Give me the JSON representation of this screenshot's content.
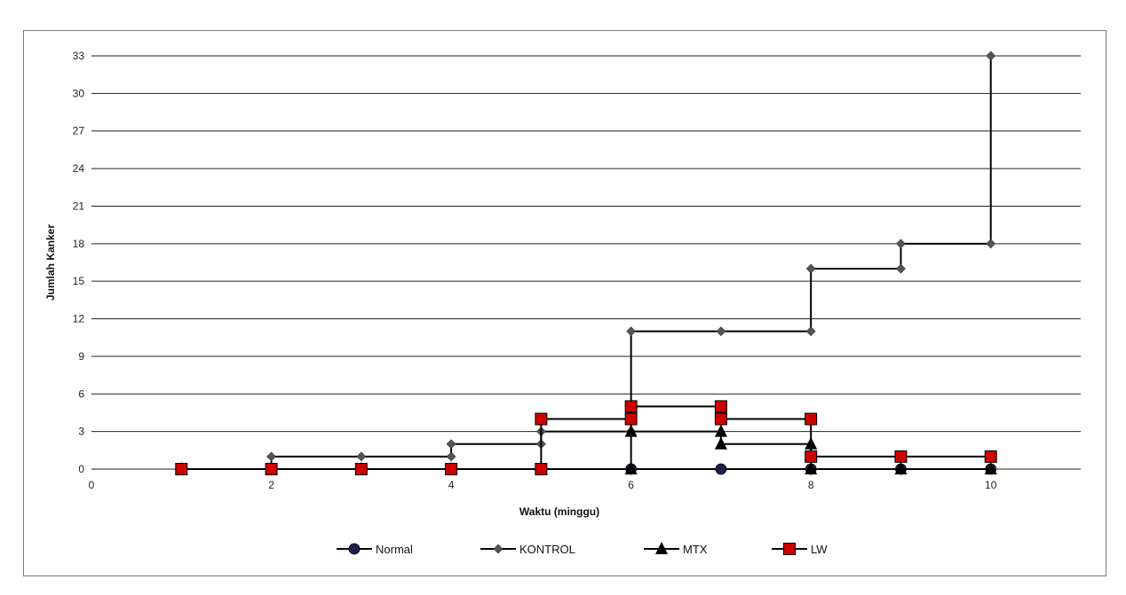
{
  "chart_data": {
    "type": "line",
    "title": "",
    "xlabel": "Waktu (minggu)",
    "ylabel": "Jumlah Kanker",
    "xlim": [
      0,
      11
    ],
    "ylim": [
      0,
      33
    ],
    "x_ticks": [
      0,
      2,
      4,
      6,
      8,
      10
    ],
    "y_ticks": [
      0,
      3,
      6,
      9,
      12,
      15,
      18,
      21,
      24,
      27,
      30,
      33
    ],
    "grid": "horizontal",
    "legend_position": "bottom",
    "series": [
      {
        "name": "Normal",
        "marker": "circle",
        "color": "#1b1f4a",
        "points": [
          [
            1,
            0
          ],
          [
            2,
            0
          ],
          [
            3,
            0
          ],
          [
            4,
            0
          ],
          [
            5,
            0
          ],
          [
            6,
            0
          ],
          [
            7,
            0
          ],
          [
            8,
            0
          ],
          [
            9,
            0
          ],
          [
            10,
            0
          ]
        ]
      },
      {
        "name": "KONTROL",
        "marker": "diamond",
        "color": "#555555",
        "points": [
          [
            1,
            0
          ],
          [
            2,
            0
          ],
          [
            2,
            1
          ],
          [
            3,
            1
          ],
          [
            4,
            1
          ],
          [
            4,
            2
          ],
          [
            5,
            2
          ],
          [
            5,
            3
          ],
          [
            6,
            3
          ],
          [
            6,
            11
          ],
          [
            7,
            11
          ],
          [
            8,
            11
          ],
          [
            8,
            16
          ],
          [
            9,
            16
          ],
          [
            9,
            18
          ],
          [
            10,
            18
          ],
          [
            10,
            33
          ]
        ]
      },
      {
        "name": "MTX",
        "marker": "triangle",
        "color": "#000000",
        "points": [
          [
            1,
            0
          ],
          [
            2,
            0
          ],
          [
            3,
            0
          ],
          [
            4,
            0
          ],
          [
            5,
            0
          ],
          [
            6,
            0
          ],
          [
            6,
            3
          ],
          [
            7,
            3
          ],
          [
            7,
            2
          ],
          [
            8,
            2
          ],
          [
            8,
            0
          ],
          [
            9,
            0
          ],
          [
            10,
            0
          ]
        ]
      },
      {
        "name": "LW",
        "marker": "square",
        "color": "#cc0000",
        "points": [
          [
            1,
            0
          ],
          [
            2,
            0
          ],
          [
            3,
            0
          ],
          [
            4,
            0
          ],
          [
            5,
            0
          ],
          [
            5,
            4
          ],
          [
            6,
            4
          ],
          [
            6,
            5
          ],
          [
            7,
            5
          ],
          [
            7,
            4
          ],
          [
            8,
            4
          ],
          [
            8,
            1
          ],
          [
            9,
            1
          ],
          [
            10,
            1
          ]
        ]
      }
    ]
  }
}
